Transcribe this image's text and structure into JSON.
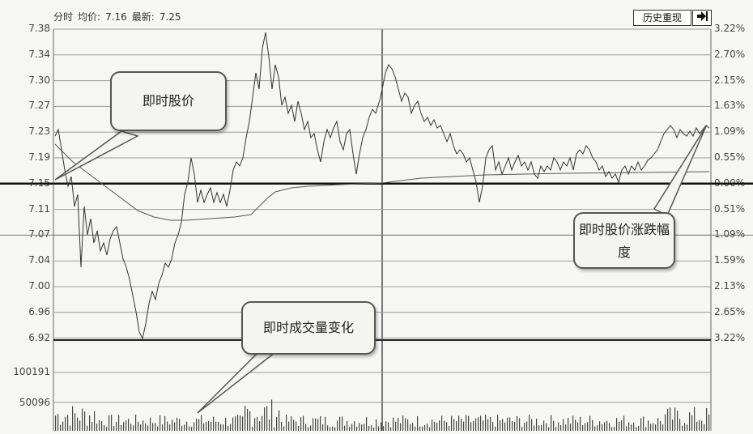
{
  "header": {
    "tab_label": "分时",
    "avg_label": "均价:",
    "avg_value": "7.16",
    "last_label": "最新:",
    "last_value": "7.25"
  },
  "toolbar": {
    "history_label": "历史重现",
    "exit_icon": "arrow-right-bar-icon"
  },
  "price_axis": [
    "7.38",
    "7.34",
    "7.30",
    "7.27",
    "7.23",
    "7.19",
    "7.15",
    "7.11",
    "7.07",
    "7.04",
    "7.00",
    "6.96",
    "6.92"
  ],
  "pct_axis": [
    "3.22%",
    "2.70%",
    "2.15%",
    "1.63%",
    "1.09%",
    "0.55%",
    "0.00%",
    "0.51%",
    "1.09%",
    "1.59%",
    "2.13%",
    "2.65%",
    "3.22%"
  ],
  "volume_axis": [
    "100191",
    "50096"
  ],
  "callouts": {
    "price": "即时股价",
    "change": "即时股价涨跌幅度",
    "volume": "即时成交量变化"
  },
  "colors": {
    "grid": "#9a9a9a",
    "line": "#333333",
    "base_line": "#111111"
  }
}
